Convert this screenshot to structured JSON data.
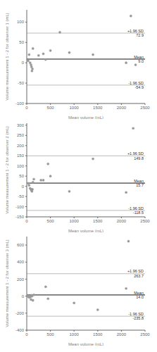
{
  "chart_data": [
    {
      "type": "scatter",
      "xlabel": "Mean volume (mL)",
      "ylabel": "Volume measurement 1 - 2 for observer 1 (mL)",
      "x": [
        30,
        50,
        70,
        90,
        100,
        110,
        120,
        130,
        250,
        350,
        400,
        500,
        700,
        900,
        1400,
        2100,
        2200,
        2300
      ],
      "values": [
        5,
        20,
        0,
        -5,
        -10,
        -20,
        -15,
        35,
        18,
        22,
        8,
        30,
        75,
        25,
        20,
        0,
        115,
        -5
      ],
      "color": "#999999",
      "xlim": [
        0,
        2500
      ],
      "xticks": [
        0,
        500,
        1000,
        1500,
        2000,
        2500
      ],
      "ylim": [
        -100,
        130
      ],
      "yticks": [
        -100,
        -50,
        0,
        50,
        100
      ],
      "grid": false,
      "reference_lines": [
        {
          "value": 72.9,
          "label": "+1.96 SD\n72.9",
          "color": "#bbbbbb"
        },
        {
          "value": 9.0,
          "label": "Mean\n9.0",
          "color": "#111111"
        },
        {
          "value": -54.9,
          "label": "-1.96 SD\n-54.9",
          "color": "#bbbbbb"
        }
      ]
    },
    {
      "type": "scatter",
      "xlabel": "Mean volume (mL)",
      "ylabel": "Volume measurement 1 - 2 for observer 2 (mL)",
      "x": [
        30,
        50,
        70,
        90,
        100,
        110,
        120,
        130,
        150,
        300,
        350,
        450,
        500,
        900,
        1400,
        2100,
        2250
      ],
      "values": [
        15,
        5,
        -10,
        -15,
        -20,
        -25,
        -15,
        20,
        35,
        30,
        30,
        110,
        50,
        -25,
        135,
        -30,
        285
      ],
      "color": "#999999",
      "xlim": [
        0,
        2500
      ],
      "xticks": [
        0,
        500,
        1000,
        1500,
        2000,
        2500
      ],
      "ylim": [
        -150,
        310
      ],
      "yticks": [
        -150,
        -100,
        -50,
        0,
        50,
        100,
        150,
        200,
        250,
        300
      ],
      "grid": false,
      "reference_lines": [
        {
          "value": 149.8,
          "label": "+1.96 SD\n149.8",
          "color": "#bbbbbb"
        },
        {
          "value": 15.7,
          "label": "Mean\n15.7",
          "color": "#111111"
        },
        {
          "value": -118.5,
          "label": "-1.96 SD\n-118.5",
          "color": "#bbbbbb"
        }
      ]
    },
    {
      "type": "scatter",
      "xlabel": "Mean volume (mL)",
      "ylabel": "Volume measurement 1 - 2 for observer 3 (mL)",
      "x": [
        20,
        30,
        50,
        70,
        80,
        90,
        100,
        110,
        130,
        150,
        400,
        450,
        1000,
        1500,
        2100,
        2150
      ],
      "values": [
        5,
        -5,
        -15,
        -10,
        -5,
        -40,
        10,
        0,
        -50,
        15,
        110,
        -30,
        -80,
        -160,
        90,
        645
      ],
      "color": "#999999",
      "xlim": [
        0,
        2500
      ],
      "xticks": [
        0,
        500,
        1000,
        1500,
        2000,
        2500
      ],
      "ylim": [
        -400,
        700
      ],
      "yticks": [
        -400,
        -200,
        0,
        200,
        400,
        600
      ],
      "grid": false,
      "reference_lines": [
        {
          "value": 263.7,
          "label": "+1.96 SD\n263.7",
          "color": "#bbbbbb"
        },
        {
          "value": 14.0,
          "label": "Mean\n14.0",
          "color": "#111111"
        },
        {
          "value": -235.8,
          "label": "-1.96 SD\n-235.8",
          "color": "#bbbbbb"
        }
      ]
    }
  ]
}
